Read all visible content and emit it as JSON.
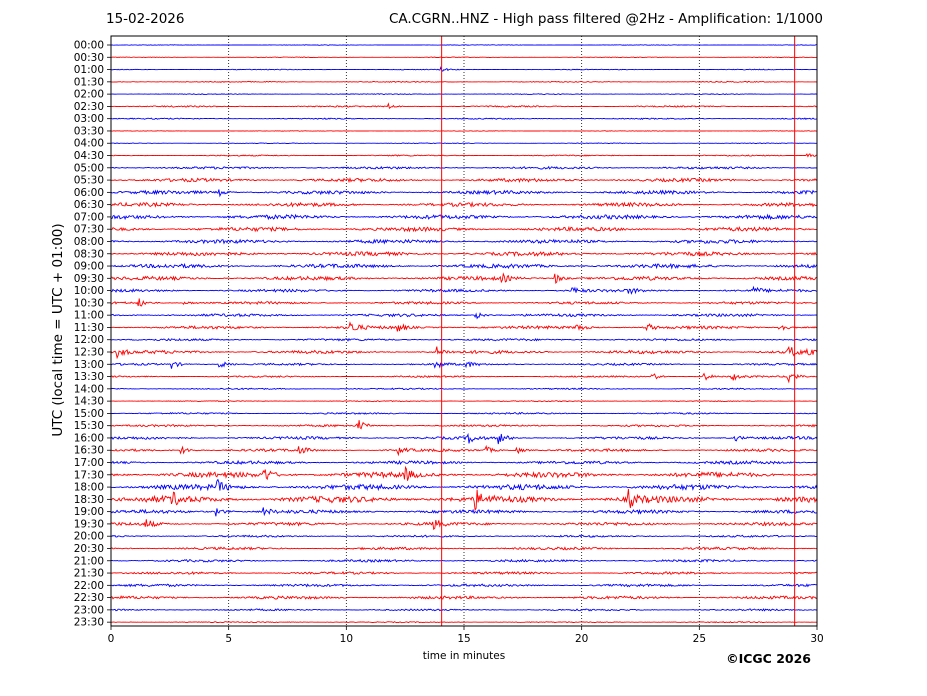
{
  "header": {
    "date": "15-02-2026",
    "title": "CA.CGRN..HNZ - High pass filtered @2Hz - Amplification: 1/1000"
  },
  "footer": {
    "copyright": "©ICGC 2026"
  },
  "chart_data": {
    "type": "line",
    "title": "CA.CGRN..HNZ - High pass filtered @2Hz - Amplification: 1/1000",
    "xlabel": "time in minutes",
    "ylabel": "UTC (local time = UTC + 01:00)",
    "xlim": [
      0,
      30
    ],
    "x_ticks": [
      0,
      5,
      10,
      15,
      20,
      25,
      30
    ],
    "y_ticks": [
      "00:00",
      "00:30",
      "01:00",
      "01:30",
      "02:00",
      "02:30",
      "03:00",
      "03:30",
      "04:00",
      "04:30",
      "05:00",
      "05:30",
      "06:00",
      "06:30",
      "07:00",
      "07:30",
      "08:00",
      "08:30",
      "09:00",
      "09:30",
      "10:00",
      "10:30",
      "11:00",
      "11:30",
      "12:00",
      "12:30",
      "13:00",
      "13:30",
      "14:00",
      "14:30",
      "15:00",
      "15:30",
      "16:00",
      "16:30",
      "17:00",
      "17:30",
      "18:00",
      "18:30",
      "19:00",
      "19:30",
      "20:00",
      "20:30",
      "21:00",
      "21:30",
      "22:00",
      "22:30",
      "23:00",
      "23:30"
    ],
    "grid": "vertical dotted lines at x ticks",
    "series_colors": [
      "#ff0000",
      "#0000ff"
    ],
    "trace_noise_level": [
      0.3,
      0.3,
      0.4,
      0.5,
      0.4,
      0.7,
      0.6,
      0.3,
      0.3,
      0.6,
      1.2,
      1.7,
      1.8,
      1.9,
      2.1,
      2.0,
      1.9,
      2.0,
      2.0,
      1.9,
      1.4,
      1.3,
      1.4,
      1.5,
      1.1,
      1.6,
      1.0,
      0.8,
      0.7,
      0.5,
      0.8,
      1.0,
      1.4,
      1.3,
      1.6,
      2.7,
      2.7,
      3.3,
      1.8,
      1.6,
      1.0,
      1.3,
      1.2,
      1.2,
      1.3,
      1.5,
      0.9,
      0.5
    ],
    "events": [
      {
        "trace": 2,
        "x": 14.0,
        "amp": 0.25
      },
      {
        "trace": 5,
        "x": 11.8,
        "amp": 0.3
      },
      {
        "trace": 9,
        "x": 29.6,
        "amp": 0.3
      },
      {
        "trace": 12,
        "x": 4.6,
        "amp": 0.4
      },
      {
        "trace": 19,
        "x": 16.6,
        "amp": 0.5
      },
      {
        "trace": 19,
        "x": 18.9,
        "amp": 0.6
      },
      {
        "trace": 20,
        "x": 19.6,
        "amp": 0.5
      },
      {
        "trace": 20,
        "x": 22.0,
        "amp": 0.4
      },
      {
        "trace": 20,
        "x": 27.3,
        "amp": 0.4
      },
      {
        "trace": 21,
        "x": 1.2,
        "amp": 0.5
      },
      {
        "trace": 21,
        "x": 3.1,
        "amp": 0.3
      },
      {
        "trace": 22,
        "x": 15.5,
        "amp": 0.5
      },
      {
        "trace": 23,
        "x": 10.2,
        "amp": 0.7
      },
      {
        "trace": 23,
        "x": 12.2,
        "amp": 0.5
      },
      {
        "trace": 23,
        "x": 19.8,
        "amp": 0.5
      },
      {
        "trace": 23,
        "x": 22.8,
        "amp": 0.5
      },
      {
        "trace": 23,
        "x": 28.4,
        "amp": 0.6
      },
      {
        "trace": 25,
        "x": 0.3,
        "amp": 0.6
      },
      {
        "trace": 25,
        "x": 13.8,
        "amp": 0.7
      },
      {
        "trace": 25,
        "x": 28.8,
        "amp": 0.8
      },
      {
        "trace": 25,
        "x": 29.6,
        "amp": 0.6
      },
      {
        "trace": 26,
        "x": 2.6,
        "amp": 0.5
      },
      {
        "trace": 26,
        "x": 4.6,
        "amp": 0.6
      },
      {
        "trace": 26,
        "x": 13.8,
        "amp": 0.6
      },
      {
        "trace": 26,
        "x": 15.1,
        "amp": 0.4
      },
      {
        "trace": 27,
        "x": 23.0,
        "amp": 0.5
      },
      {
        "trace": 27,
        "x": 25.2,
        "amp": 0.5
      },
      {
        "trace": 27,
        "x": 26.4,
        "amp": 0.5
      },
      {
        "trace": 27,
        "x": 28.8,
        "amp": 0.8
      },
      {
        "trace": 31,
        "x": 10.5,
        "amp": 0.8
      },
      {
        "trace": 32,
        "x": 15.2,
        "amp": 0.6
      },
      {
        "trace": 32,
        "x": 16.5,
        "amp": 0.7
      },
      {
        "trace": 32,
        "x": 26.5,
        "amp": 0.4
      },
      {
        "trace": 33,
        "x": 3.0,
        "amp": 0.6
      },
      {
        "trace": 33,
        "x": 8.0,
        "amp": 0.6
      },
      {
        "trace": 33,
        "x": 12.2,
        "amp": 0.5
      },
      {
        "trace": 33,
        "x": 15.9,
        "amp": 0.5
      },
      {
        "trace": 33,
        "x": 17.2,
        "amp": 0.5
      },
      {
        "trace": 35,
        "x": 6.5,
        "amp": 1.0
      },
      {
        "trace": 35,
        "x": 12.5,
        "amp": 0.7
      },
      {
        "trace": 36,
        "x": 4.5,
        "amp": 0.8
      },
      {
        "trace": 37,
        "x": 2.5,
        "amp": 1.0
      },
      {
        "trace": 37,
        "x": 15.5,
        "amp": 1.1
      },
      {
        "trace": 37,
        "x": 22.0,
        "amp": 1.1
      },
      {
        "trace": 38,
        "x": 4.5,
        "amp": 0.6
      },
      {
        "trace": 38,
        "x": 6.5,
        "amp": 0.5
      },
      {
        "trace": 39,
        "x": 1.5,
        "amp": 0.6
      },
      {
        "trace": 39,
        "x": 13.7,
        "amp": 0.6
      }
    ],
    "vertical_markers": [
      14.05,
      29.05
    ]
  }
}
